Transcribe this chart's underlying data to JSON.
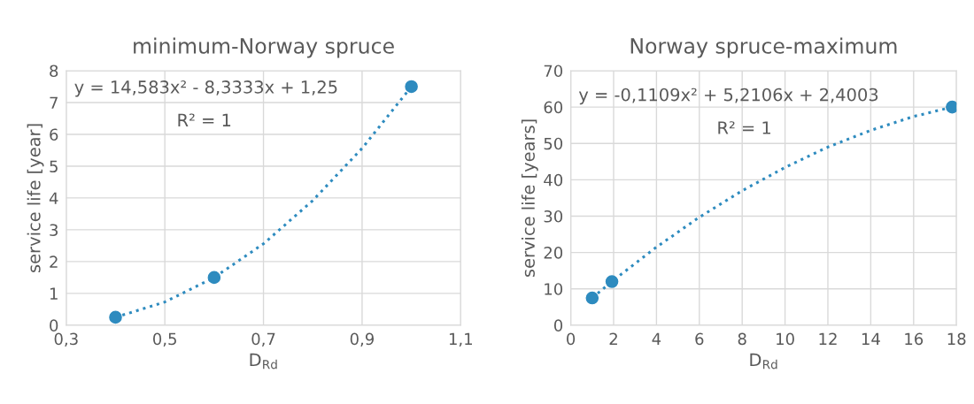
{
  "chart_data": [
    {
      "type": "scatter",
      "title": "minimum-Norway spruce",
      "xlabel": "D$_{Rd}$",
      "ylabel": "service life [year]",
      "series": [
        {
          "type": "scatter",
          "color": "#2e8bbf",
          "marker": "circle",
          "x": [
            0.4,
            0.6,
            1.0
          ],
          "values": [
            0.25,
            1.5,
            7.5
          ]
        },
        {
          "type": "line",
          "color": "#2e8bbf",
          "marker": "none",
          "line_style": "dotted",
          "x": [
            0.4,
            0.5,
            0.6,
            0.7,
            0.8,
            0.9,
            1.0
          ],
          "values": [
            0.25,
            0.73,
            1.5,
            2.56,
            3.92,
            5.56,
            7.5
          ]
        }
      ],
      "xlim": [
        0.3,
        1.1
      ],
      "xticks": [
        {
          "value": 0.3,
          "label": "0,3"
        },
        {
          "value": 0.5,
          "label": "0,5"
        },
        {
          "value": 0.7,
          "label": "0,7"
        },
        {
          "value": 0.9,
          "label": "0,9"
        },
        {
          "value": 1.1,
          "label": "1,1"
        }
      ],
      "ylim": [
        0,
        8
      ],
      "yticks": [
        0,
        1,
        2,
        3,
        4,
        5,
        6,
        7,
        8
      ],
      "grid": true,
      "legend": false,
      "annotations": [
        "y = 14,583x² - 8,3333x + 1,25",
        "R² = 1"
      ]
    },
    {
      "type": "scatter",
      "title": "Norway spruce-maximum",
      "xlabel": "D$_{Rd}$",
      "ylabel": "service life [years]",
      "series": [
        {
          "type": "scatter",
          "color": "#2e8bbf",
          "marker": "circle",
          "x": [
            1.0,
            1.92,
            17.8
          ],
          "values": [
            7.5,
            12,
            60
          ]
        },
        {
          "type": "line",
          "color": "#2e8bbf",
          "marker": "none",
          "line_style": "dotted",
          "x": [
            1,
            2,
            4,
            6,
            8,
            10,
            12,
            14,
            16,
            17.8
          ],
          "values": [
            7.5,
            12.4,
            21.5,
            29.7,
            37.0,
            43.4,
            49.0,
            53.6,
            57.4,
            60
          ]
        }
      ],
      "xlim": [
        0,
        18
      ],
      "xticks": [
        0,
        2,
        4,
        6,
        8,
        10,
        12,
        14,
        16,
        18
      ],
      "ylim": [
        0,
        70
      ],
      "yticks": [
        0,
        10,
        20,
        30,
        40,
        50,
        60,
        70
      ],
      "grid": true,
      "legend": false,
      "annotations": [
        "y = -0,1109x² + 5,2106x + 2,4003",
        "R² = 1"
      ]
    }
  ]
}
